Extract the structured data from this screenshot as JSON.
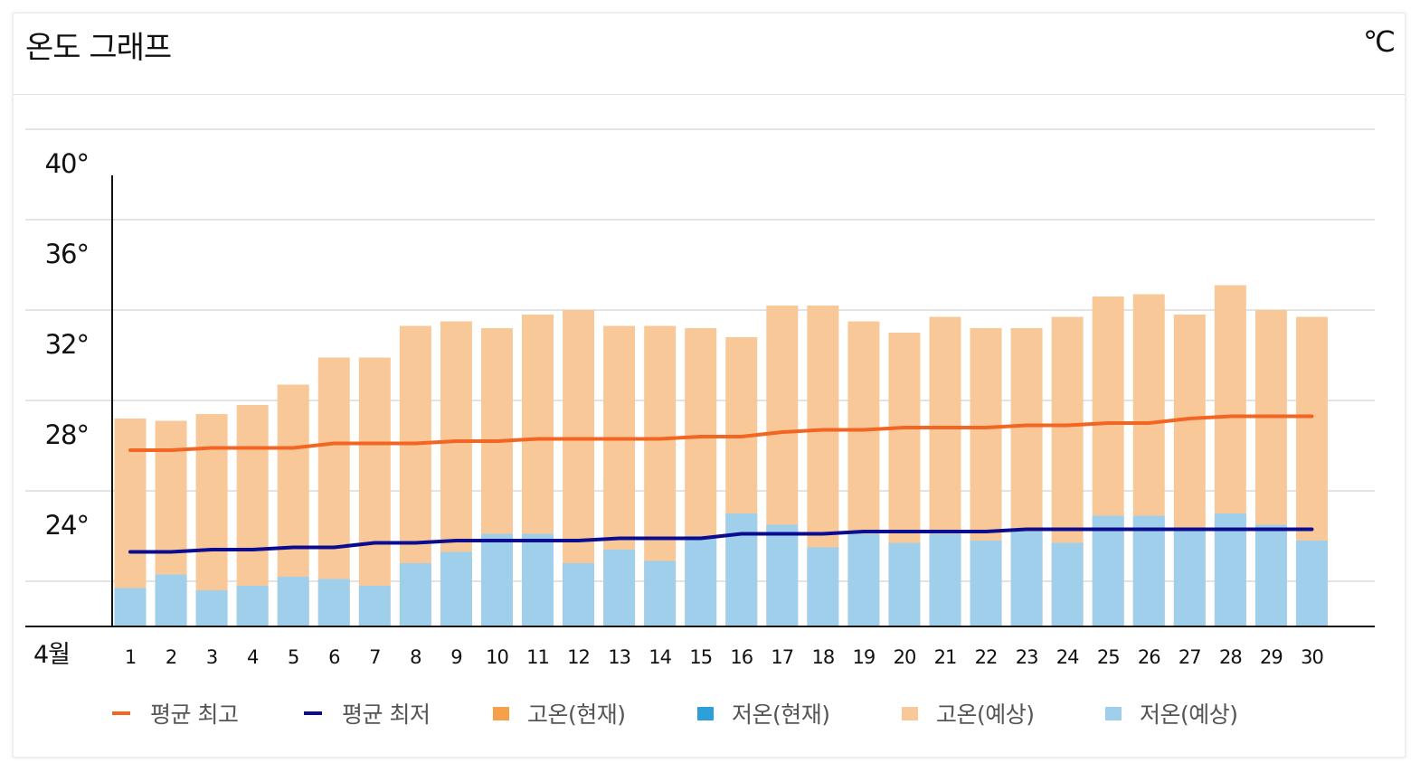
{
  "header": {
    "title": "온도 그래프",
    "unit": "℃"
  },
  "colors": {
    "avg_high": "#f26522",
    "avg_low": "#0b0c8f",
    "high_now": "#f7a04b",
    "low_now": "#2e9fd8",
    "high_forecast": "#f9c899",
    "low_forecast": "#9fcfeb"
  },
  "legend": [
    {
      "label": "평균 최고",
      "kind": "line",
      "color_key": "avg_high"
    },
    {
      "label": "평균 최저",
      "kind": "line",
      "color_key": "avg_low"
    },
    {
      "label": "고온(현재)",
      "kind": "box",
      "color_key": "high_now"
    },
    {
      "label": "저온(현재)",
      "kind": "box",
      "color_key": "low_now"
    },
    {
      "label": "고온(예상)",
      "kind": "box",
      "color_key": "high_forecast"
    },
    {
      "label": "저온(예상)",
      "kind": "box",
      "color_key": "low_forecast"
    }
  ],
  "chart_data": {
    "type": "bar",
    "month_label": "4월",
    "ylim": [
      20,
      42
    ],
    "y_ticks": [
      24,
      28,
      32,
      36,
      40
    ],
    "y_tick_labels": [
      "24°",
      "28°",
      "32°",
      "36°",
      "40°"
    ],
    "categories": [
      "1",
      "2",
      "3",
      "4",
      "5",
      "6",
      "7",
      "8",
      "9",
      "10",
      "11",
      "12",
      "13",
      "14",
      "15",
      "16",
      "17",
      "18",
      "19",
      "20",
      "21",
      "22",
      "23",
      "24",
      "25",
      "26",
      "27",
      "28",
      "29",
      "30"
    ],
    "series": [
      {
        "name": "고온(예상)",
        "kind": "bar",
        "values": [
          29.2,
          29.1,
          29.4,
          29.8,
          30.7,
          31.9,
          31.9,
          33.3,
          33.5,
          33.2,
          33.8,
          34.0,
          33.3,
          33.3,
          33.2,
          32.8,
          34.2,
          34.2,
          33.5,
          33.0,
          33.7,
          33.2,
          33.2,
          33.7,
          34.6,
          34.7,
          33.8,
          35.1,
          34.0,
          33.7
        ]
      },
      {
        "name": "저온(예상)",
        "kind": "bar",
        "values": [
          21.7,
          22.3,
          21.6,
          21.8,
          22.2,
          22.1,
          21.8,
          22.8,
          23.3,
          24.1,
          24.1,
          22.8,
          23.4,
          22.9,
          24.0,
          25.0,
          24.5,
          23.5,
          24.1,
          23.7,
          24.1,
          23.8,
          24.2,
          23.7,
          24.9,
          24.9,
          24.3,
          25.0,
          24.5,
          23.8
        ]
      },
      {
        "name": "평균 최고",
        "kind": "line",
        "values": [
          27.8,
          27.8,
          27.9,
          27.9,
          27.9,
          28.1,
          28.1,
          28.1,
          28.2,
          28.2,
          28.3,
          28.3,
          28.3,
          28.3,
          28.4,
          28.4,
          28.6,
          28.7,
          28.7,
          28.8,
          28.8,
          28.8,
          28.9,
          28.9,
          29.0,
          29.0,
          29.2,
          29.3,
          29.3,
          29.3
        ]
      },
      {
        "name": "평균 최저",
        "kind": "line",
        "values": [
          23.3,
          23.3,
          23.4,
          23.4,
          23.5,
          23.5,
          23.7,
          23.7,
          23.8,
          23.8,
          23.8,
          23.8,
          23.9,
          23.9,
          23.9,
          24.1,
          24.1,
          24.1,
          24.2,
          24.2,
          24.2,
          24.2,
          24.3,
          24.3,
          24.3,
          24.3,
          24.3,
          24.3,
          24.3,
          24.3
        ]
      }
    ],
    "grid": true,
    "legend_position": "bottom"
  }
}
